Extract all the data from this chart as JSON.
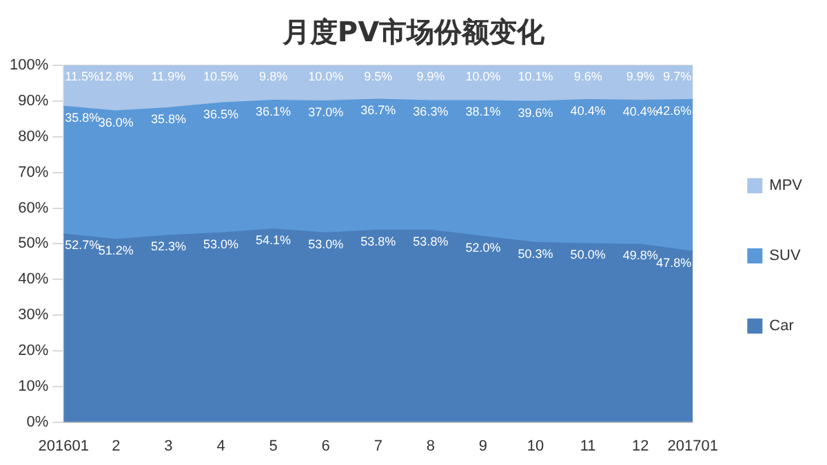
{
  "chart_data": {
    "type": "area",
    "title": "月度PV市场份额变化",
    "stacked": true,
    "categories": [
      "201601",
      "2",
      "3",
      "4",
      "5",
      "6",
      "7",
      "8",
      "9",
      "10",
      "11",
      "12",
      "201701"
    ],
    "series": [
      {
        "name": "Car",
        "color": "#4a7ebb",
        "values": [
          52.7,
          51.2,
          52.3,
          53.0,
          54.1,
          53.0,
          53.8,
          53.8,
          52.0,
          50.3,
          50.0,
          49.8,
          47.8
        ],
        "value_labels": [
          "52.7%",
          "51.2%",
          "52.3%",
          "53.0%",
          "54.1%",
          "53.0%",
          "53.8%",
          "53.8%",
          "52.0%",
          "50.3%",
          "50.0%",
          "49.8%",
          "47.8%"
        ]
      },
      {
        "name": "SUV",
        "color": "#5a98d8",
        "values": [
          35.8,
          36.0,
          35.8,
          36.5,
          36.1,
          37.0,
          36.7,
          36.3,
          38.1,
          39.6,
          40.4,
          40.4,
          42.6
        ],
        "value_labels": [
          "35.8%",
          "36.0%",
          "35.8%",
          "36.5%",
          "36.1%",
          "37.0%",
          "36.7%",
          "36.3%",
          "38.1%",
          "39.6%",
          "40.4%",
          "40.4%",
          "42.6%"
        ]
      },
      {
        "name": "MPV",
        "color": "#a9c5e9",
        "values": [
          11.5,
          12.8,
          11.9,
          10.5,
          9.8,
          10.0,
          9.5,
          9.9,
          10.0,
          10.1,
          9.6,
          9.9,
          9.7
        ],
        "value_labels": [
          "11.5%",
          "12.8%",
          "11.9%",
          "10.5%",
          "9.8%",
          "10.0%",
          "9.5%",
          "9.9%",
          "10.0%",
          "10.1%",
          "9.6%",
          "9.9%",
          "9.7%"
        ]
      }
    ],
    "ylim": [
      0,
      100
    ],
    "yticks": [
      {
        "value": 0,
        "label": "0%"
      },
      {
        "value": 10,
        "label": "10%"
      },
      {
        "value": 20,
        "label": "20%"
      },
      {
        "value": 30,
        "label": "30%"
      },
      {
        "value": 40,
        "label": "40%"
      },
      {
        "value": 50,
        "label": "50%"
      },
      {
        "value": 60,
        "label": "60%"
      },
      {
        "value": 70,
        "label": "70%"
      },
      {
        "value": 80,
        "label": "80%"
      },
      {
        "value": 90,
        "label": "90%"
      },
      {
        "value": 100,
        "label": "100%"
      }
    ],
    "grid": "y",
    "legend": "right"
  }
}
